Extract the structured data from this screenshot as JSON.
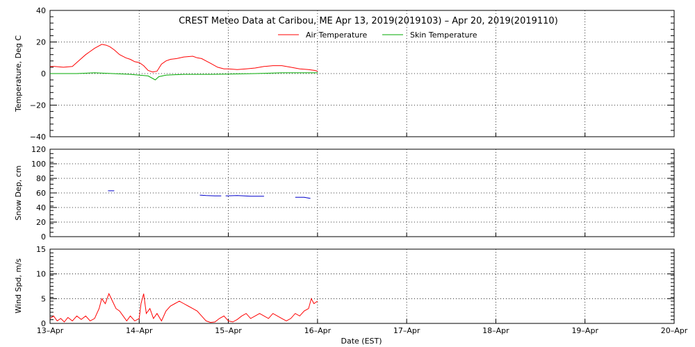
{
  "chart_data": [
    {
      "type": "line",
      "title": "CREST Meteo Data at Caribou, ME   Apr 13, 2019(2019103) – Apr 20, 2019(2019110)",
      "ylabel": "Temperature, Deg C",
      "ylim": [
        -40,
        40
      ],
      "yticks": [
        "40",
        "20",
        "0",
        "−20",
        "−40"
      ],
      "ytick_values": [
        40,
        20,
        0,
        -20,
        -40
      ],
      "legend": "top-center",
      "grid": true,
      "series": [
        {
          "name": "Air Temperature",
          "color": "#ff0000",
          "x": [
            0,
            0.05,
            0.15,
            0.25,
            0.32,
            0.4,
            0.5,
            0.58,
            0.63,
            0.67,
            0.72,
            0.78,
            0.85,
            0.9,
            0.95,
            1.0,
            1.05,
            1.1,
            1.15,
            1.2,
            1.25,
            1.3,
            1.35,
            1.42,
            1.5,
            1.6,
            1.65,
            1.7,
            1.75,
            1.8,
            1.88,
            1.95,
            2.0,
            2.1,
            2.2,
            2.3,
            2.4,
            2.5,
            2.6,
            2.7,
            2.8,
            2.9,
            2.97,
            3.0
          ],
          "y": [
            4.5,
            4.5,
            4.0,
            4.5,
            8.0,
            12.0,
            16.0,
            18.5,
            18.0,
            17.0,
            15.0,
            12.0,
            10.0,
            9.0,
            7.5,
            7.0,
            5.0,
            2.0,
            1.0,
            1.5,
            6.0,
            8.0,
            9.0,
            9.5,
            10.5,
            11.0,
            10.0,
            9.5,
            8.0,
            6.5,
            4.0,
            3.0,
            3.0,
            2.5,
            3.0,
            3.5,
            4.5,
            5.0,
            5.0,
            4.0,
            3.0,
            2.5,
            2.0,
            1.5
          ]
        },
        {
          "name": "Skin Temperature",
          "color": "#00aa00",
          "x": [
            0,
            0.3,
            0.5,
            0.7,
            0.9,
            1.0,
            1.1,
            1.18,
            1.22,
            1.3,
            1.5,
            1.8,
            2.0,
            2.3,
            2.6,
            2.8,
            3.0
          ],
          "y": [
            0.0,
            0.0,
            0.5,
            0.0,
            -0.5,
            -1.0,
            -1.5,
            -4.0,
            -2.0,
            -1.0,
            -0.5,
            -0.5,
            -0.3,
            0.0,
            0.5,
            0.5,
            0.5
          ]
        }
      ]
    },
    {
      "type": "line",
      "ylabel": "Snow Dep, cm",
      "ylim": [
        0,
        120
      ],
      "yticks": [
        "120",
        "100",
        "80",
        "60",
        "40",
        "20",
        "0"
      ],
      "ytick_values": [
        120,
        100,
        80,
        60,
        40,
        20,
        0
      ],
      "grid": true,
      "series": [
        {
          "color": "#0000cc",
          "segments": [
            {
              "x": [
                0.65,
                0.72
              ],
              "y": [
                63,
                63
              ]
            },
            {
              "x": [
                1.68,
                1.75,
                1.85,
                1.92
              ],
              "y": [
                57,
                56.5,
                56,
                56
              ]
            },
            {
              "x": [
                1.97,
                2.1,
                2.25,
                2.4
              ],
              "y": [
                56,
                56.5,
                55.5,
                55.5
              ]
            },
            {
              "x": [
                2.75,
                2.85,
                2.92
              ],
              "y": [
                54,
                54,
                52.5
              ]
            }
          ]
        }
      ]
    },
    {
      "type": "line",
      "ylabel": "Wind Spd, m/s",
      "xlabel": "Date (EST)",
      "ylim": [
        0,
        15
      ],
      "yticks": [
        "15",
        "10",
        "5",
        "0"
      ],
      "ytick_values": [
        15,
        10,
        5,
        0
      ],
      "grid": true,
      "x_categories": [
        "13–Apr",
        "14–Apr",
        "15–Apr",
        "16–Apr",
        "17–Apr",
        "18–Apr",
        "19–Apr",
        "20–Apr"
      ],
      "series": [
        {
          "color": "#ff0000",
          "x": [
            0,
            0.04,
            0.08,
            0.12,
            0.16,
            0.2,
            0.25,
            0.3,
            0.35,
            0.4,
            0.45,
            0.5,
            0.55,
            0.58,
            0.62,
            0.66,
            0.7,
            0.74,
            0.78,
            0.82,
            0.86,
            0.9,
            0.95,
            1.0,
            1.02,
            1.05,
            1.08,
            1.12,
            1.16,
            1.2,
            1.25,
            1.3,
            1.35,
            1.4,
            1.45,
            1.5,
            1.55,
            1.6,
            1.65,
            1.7,
            1.75,
            1.8,
            1.85,
            1.9,
            1.95,
            2.0,
            2.05,
            2.1,
            2.15,
            2.2,
            2.25,
            2.3,
            2.35,
            2.4,
            2.45,
            2.5,
            2.55,
            2.6,
            2.65,
            2.7,
            2.75,
            2.8,
            2.85,
            2.9,
            2.93,
            2.96,
            3.0
          ],
          "y": [
            1.0,
            1.5,
            0.5,
            1.0,
            0.3,
            1.2,
            0.5,
            1.5,
            0.8,
            1.5,
            0.5,
            1.0,
            3.0,
            5.0,
            4.0,
            6.0,
            4.5,
            3.0,
            2.5,
            1.5,
            0.5,
            1.5,
            0.5,
            1.0,
            4.0,
            6.0,
            2.0,
            3.0,
            1.0,
            2.0,
            0.5,
            2.5,
            3.5,
            4.0,
            4.5,
            4.0,
            3.5,
            3.0,
            2.5,
            1.5,
            0.5,
            0.2,
            0.3,
            1.0,
            1.5,
            0.5,
            0.3,
            0.8,
            1.5,
            2.0,
            1.0,
            1.5,
            2.0,
            1.5,
            1.0,
            2.0,
            1.5,
            1.0,
            0.5,
            1.0,
            2.0,
            1.5,
            2.5,
            3.0,
            5.0,
            4.0,
            4.5
          ]
        }
      ]
    }
  ]
}
